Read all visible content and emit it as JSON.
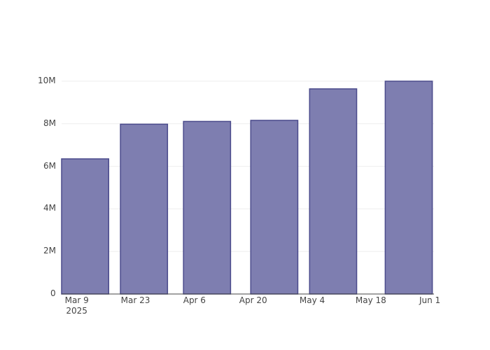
{
  "chart_data": {
    "type": "bar",
    "x": [
      "2025-03-11",
      "2025-03-25",
      "2025-04-09",
      "2025-04-25",
      "2025-05-09",
      "2025-05-27"
    ],
    "values": [
      6350000,
      7980000,
      8110000,
      8160000,
      9640000,
      10000000
    ],
    "color": "#7e7eb0",
    "edge_color": "#4b4b8c",
    "xlim": [
      "2025-03-05T09:36:00Z",
      "2025-06-02T00:00:00Z"
    ],
    "xticks": [
      {
        "value": "2025-03-09",
        "label": "Mar 9\n2025"
      },
      {
        "value": "2025-03-23",
        "label": "Mar 23"
      },
      {
        "value": "2025-04-06",
        "label": "Apr 6"
      },
      {
        "value": "2025-04-20",
        "label": "Apr 20"
      },
      {
        "value": "2025-05-04",
        "label": "May 4"
      },
      {
        "value": "2025-05-18",
        "label": "May 18"
      },
      {
        "value": "2025-06-01",
        "label": "Jun 1"
      }
    ],
    "ylim": [
      0,
      10526316
    ],
    "yticks": [
      0,
      {
        "value": 2000000,
        "label": "2M"
      },
      {
        "value": 4000000,
        "label": "4M"
      },
      {
        "value": 6000000,
        "label": "6M"
      },
      {
        "value": 8000000,
        "label": "8M"
      },
      {
        "value": 10000000,
        "label": "10M"
      }
    ],
    "grid": true
  }
}
